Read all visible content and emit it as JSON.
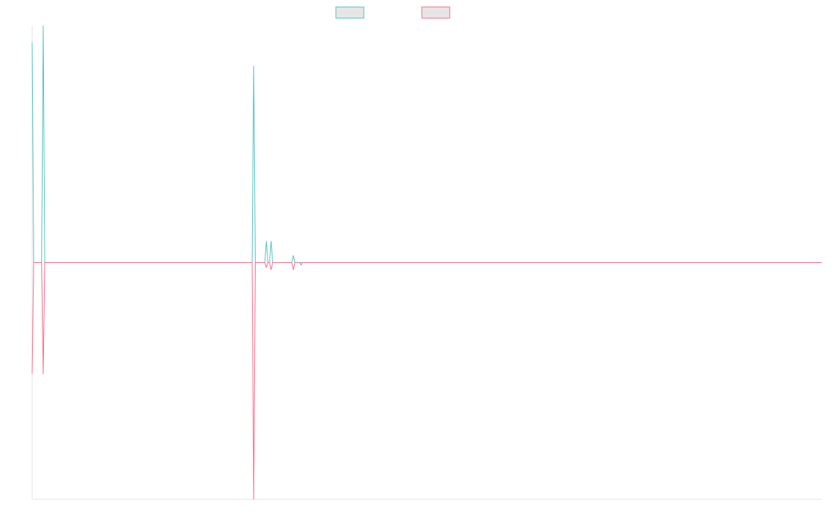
{
  "chart_data": {
    "type": "line",
    "title": "",
    "xlabel": "",
    "ylabel": "",
    "grid": false,
    "legend_placement": "top-center",
    "ylim": [
      -1.0,
      1.0
    ],
    "colors": {
      "series_a": "#4bc0c0",
      "series_b": "#ff6384",
      "legend_fill": "#e6e6e6",
      "axis": "#e0e0e0"
    },
    "n_points": 500,
    "series": [
      {
        "legend_label": "",
        "color": "#4bc0c0",
        "spikes": [
          {
            "i": 0,
            "v": 0.93
          },
          {
            "i": 7,
            "v": 1.0
          },
          {
            "i": 140,
            "v": 0.83
          },
          {
            "i": 148,
            "v": 0.09
          },
          {
            "i": 151,
            "v": 0.09
          },
          {
            "i": 165,
            "v": 0.03
          }
        ]
      },
      {
        "legend_label": "",
        "color": "#ff6384",
        "spikes": [
          {
            "i": 0,
            "v": -0.47
          },
          {
            "i": 7,
            "v": -0.47
          },
          {
            "i": 140,
            "v": -1.0
          },
          {
            "i": 148,
            "v": -0.02
          },
          {
            "i": 151,
            "v": -0.03
          },
          {
            "i": 165,
            "v": -0.03
          },
          {
            "i": 170,
            "v": -0.01
          }
        ]
      }
    ]
  }
}
